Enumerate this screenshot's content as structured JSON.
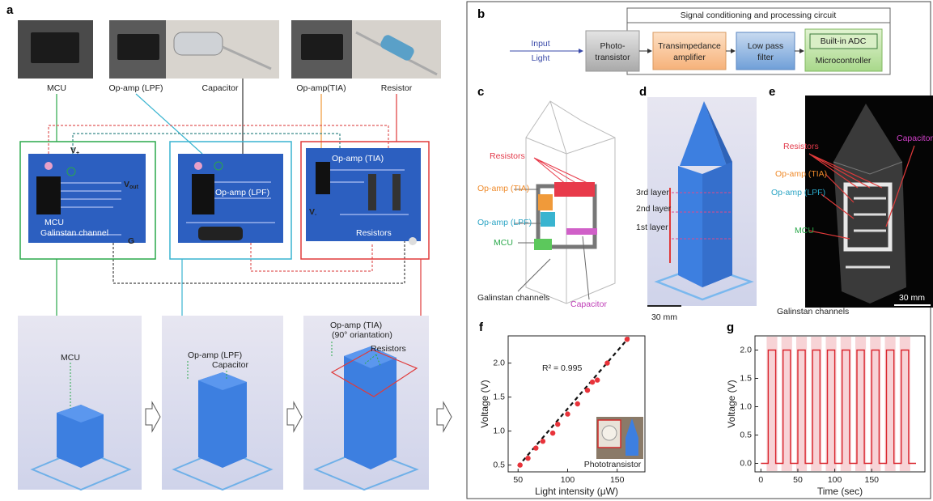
{
  "panel_labels": [
    "a",
    "b",
    "c",
    "d",
    "e",
    "f",
    "g"
  ],
  "a": {
    "photo_labels": [
      "MCU",
      "Op-amp (LPF)",
      "Capacitor",
      "Op-amp(TIA)",
      "Resistor"
    ],
    "board1": {
      "vplus": [
        "V",
        "+"
      ],
      "vout": [
        "V",
        "out"
      ],
      "mcu": "MCU",
      "channel": "Galinstan channel",
      "ground": "G"
    },
    "board2": {
      "opamp": "Op-amp (LPF)",
      "capacitor": "Capacitor"
    },
    "board3": {
      "opamp": "Op-amp (TIA)",
      "vminus": [
        "V",
        "-"
      ],
      "resistors": "Resistors"
    },
    "build": {
      "mcu": "MCU",
      "opamp_lpf": "Op-amp (LPF)",
      "capacitor": "Capacitor",
      "opamp_tia": "Op-amp (TIA)",
      "orientation": "(90° oriantation)",
      "resistors": "Resistors"
    }
  },
  "b": {
    "title": "Signal conditioning and processing circuit",
    "input": [
      "Input",
      "Light"
    ],
    "phototransistor": [
      "Photo-",
      "transistor"
    ],
    "tia": [
      "Transimpedance",
      "amplifier"
    ],
    "lpf": [
      "Low pass",
      "filter"
    ],
    "adc": "Built-in ADC",
    "microcontroller": "Microcontroller"
  },
  "c": {
    "resistors": "Resistors",
    "opamp_tia": "Op-amp (TIA)",
    "opamp_lpf": "Op-amp (LPF)",
    "mcu": "MCU",
    "channels": "Galinstan channels",
    "capacitor": "Capacitor"
  },
  "d": {
    "layers": [
      "3rd layer",
      "2nd layer",
      "1st layer"
    ],
    "scale": "30 mm"
  },
  "e": {
    "resistors": "Resistors",
    "capacitor": "Capacitor",
    "opamp_tia": "Op-amp (TIA)",
    "opamp_lpf": "Op-amp (LPF)",
    "mcu": "MCU",
    "channels": "Galinstan channels",
    "scale": "30 mm"
  },
  "chart_data": [
    {
      "type": "scatter",
      "x_label": "Light intensity (μW)",
      "y_label": "Voltage (V)",
      "annotation": "R² = 0.995",
      "inset_label": "Phototransistor",
      "x": [
        52,
        60,
        68,
        75,
        85,
        90,
        100,
        110,
        120,
        125,
        130,
        140,
        160
      ],
      "values": [
        0.5,
        0.6,
        0.75,
        0.85,
        0.97,
        1.1,
        1.25,
        1.4,
        1.6,
        1.72,
        1.75,
        2.0,
        2.35
      ],
      "color": "#e8333a",
      "fit": {
        "x": [
          50,
          162
        ],
        "values": [
          0.48,
          2.38
        ],
        "color": "#111"
      },
      "xlim": [
        40,
        178
      ],
      "ylim": [
        0.4,
        2.4
      ],
      "xticks": [
        50,
        100,
        150
      ],
      "yticks": [
        0.5,
        {
          "value": 1.0,
          "label": "1.0"
        },
        1.5,
        {
          "value": 2.0,
          "label": "2.0"
        }
      ]
    },
    {
      "type": "line",
      "x_label": "Time (sec)",
      "y_label": "Voltage (V)",
      "x": [
        0,
        10,
        10,
        20,
        20,
        30,
        30,
        40,
        40,
        50,
        50,
        60,
        60,
        70,
        70,
        80,
        80,
        90,
        90,
        100,
        100,
        110,
        110,
        120,
        120,
        130,
        130,
        140,
        140,
        150,
        150,
        160,
        160,
        170,
        170,
        180,
        180,
        190,
        190,
        200,
        200,
        210
      ],
      "values": [
        0,
        0,
        2.0,
        2.0,
        0,
        0,
        2.0,
        2.0,
        0,
        0,
        2.0,
        2.0,
        0,
        0,
        2.0,
        2.0,
        0,
        0,
        2.0,
        2.0,
        0,
        0,
        2.0,
        2.0,
        0,
        0,
        2.0,
        2.0,
        0,
        0,
        2.0,
        2.0,
        0,
        0,
        2.0,
        2.0,
        0,
        0,
        2.0,
        2.0,
        0,
        0
      ],
      "color": "#d9262e",
      "band_color": "#f7d3d6",
      "xlim": [
        -8,
        222
      ],
      "ylim": [
        -0.15,
        2.25
      ],
      "xticks": [
        0,
        50,
        100,
        150
      ],
      "yticks": [
        {
          "value": 0.0,
          "label": "0.0"
        },
        0.5,
        {
          "value": 1.0,
          "label": "1.0"
        },
        1.5,
        {
          "value": 2.0,
          "label": "2.0"
        }
      ]
    }
  ]
}
